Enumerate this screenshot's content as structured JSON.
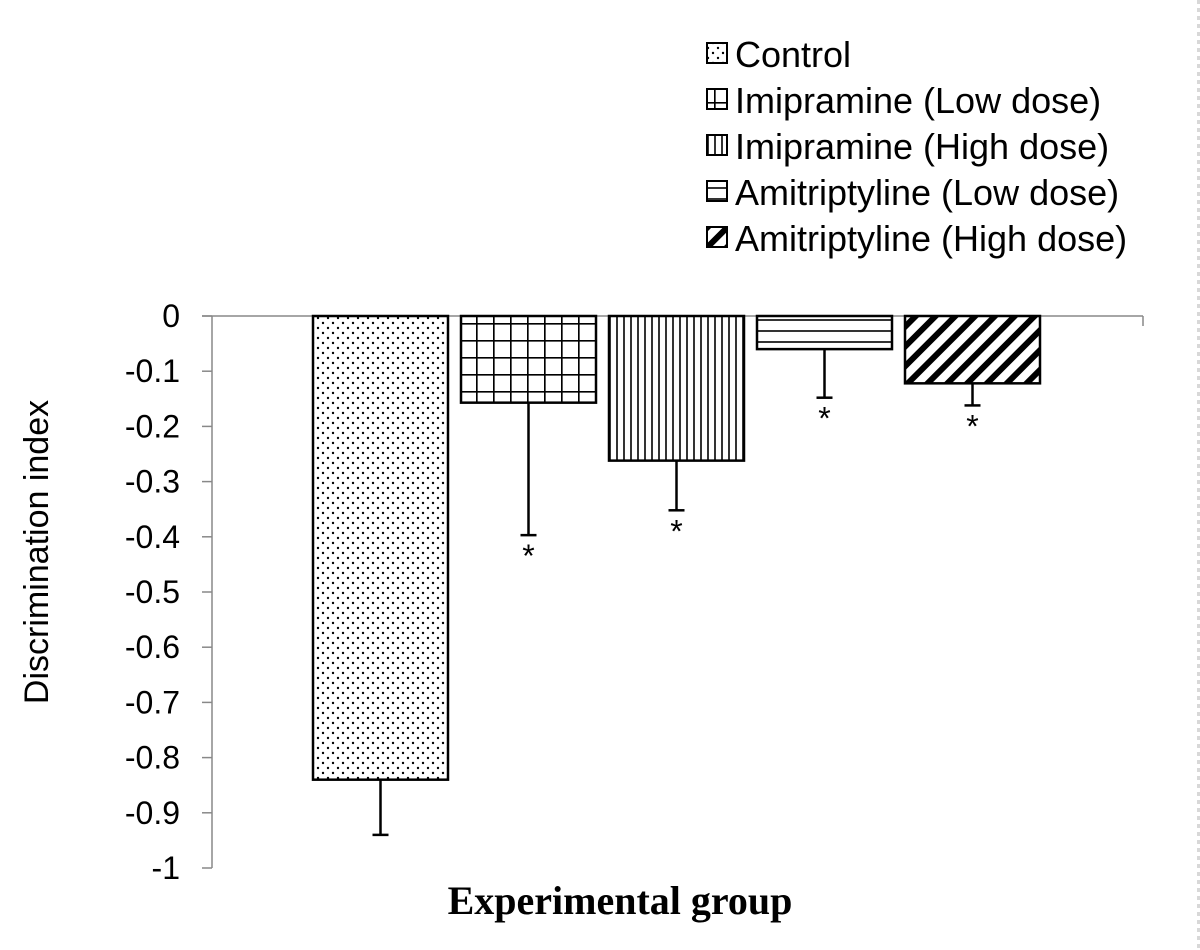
{
  "chart_data": {
    "type": "bar",
    "title": "",
    "xlabel": "Experimental group",
    "ylabel": "Discrimination index",
    "ylim": [
      -1,
      0
    ],
    "yticks": [
      "0",
      "-0.1",
      "-0.2",
      "-0.3",
      "-0.4",
      "-0.5",
      "-0.6",
      "-0.7",
      "-0.8",
      "-0.9",
      "-1"
    ],
    "grid": false,
    "legend_position": "top-right",
    "series": [
      {
        "name": "Control",
        "value": -0.84,
        "error": 0.1,
        "significance": "",
        "pattern": "dots"
      },
      {
        "name": "Imipramine (Low dose)",
        "value": -0.157,
        "error": 0.24,
        "significance": "*",
        "pattern": "grid"
      },
      {
        "name": "Imipramine (High dose)",
        "value": -0.262,
        "error": 0.09,
        "significance": "*",
        "pattern": "vertical"
      },
      {
        "name": "Amitriptyline (Low dose)",
        "value": -0.06,
        "error": 0.088,
        "significance": "*",
        "pattern": "horizontal"
      },
      {
        "name": "Amitriptyline (High dose)",
        "value": -0.122,
        "error": 0.04,
        "significance": "*",
        "pattern": "diagonal"
      }
    ]
  }
}
